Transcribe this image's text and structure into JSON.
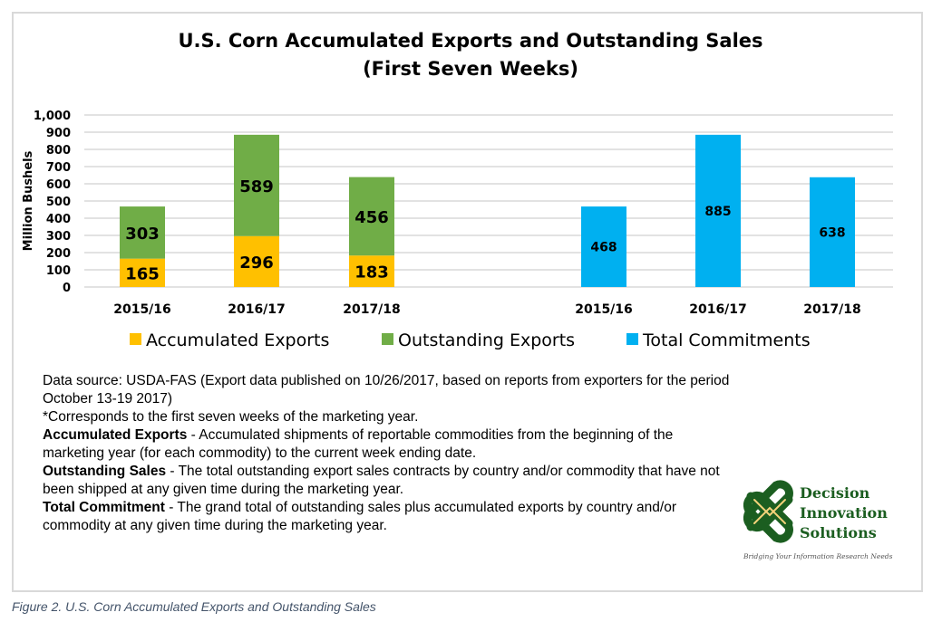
{
  "chart_data": {
    "type": "bar",
    "title": "U.S. Corn Accumulated Exports and Outstanding Sales",
    "subtitle": "(First Seven Weeks)",
    "ylabel": "Million Bushels",
    "ylim": [
      0,
      1000
    ],
    "yticks": [
      "0",
      "100",
      "200",
      "300",
      "400",
      "500",
      "600",
      "700",
      "800",
      "900",
      "1,000"
    ],
    "grid": true,
    "legend_placement": "bottom",
    "groups": [
      {
        "stacked": true,
        "categories": [
          "2015/16",
          "2016/17",
          "2017/18"
        ],
        "series": [
          {
            "name": "Accumulated Exports",
            "color": "#ffc000",
            "values": [
              165,
              296,
              183
            ]
          },
          {
            "name": "Outstanding Exports",
            "color": "#70ad47",
            "values": [
              303,
              589,
              456
            ]
          }
        ]
      },
      {
        "stacked": false,
        "categories": [
          "2015/16",
          "2016/17",
          "2017/18"
        ],
        "series": [
          {
            "name": "Total Commitments",
            "color": "#00b0f0",
            "values": [
              468,
              885,
              638
            ]
          }
        ]
      }
    ]
  },
  "notes": {
    "source": "Data source: USDA-FAS (Export data published  on 10/26/2017, based on reports from exporters for the period October 13-19 2017)",
    "footnote": "*Corresponds to the first seven weeks of the marketing year.",
    "defs": [
      {
        "term": "Accumulated Exports",
        "text": " - Accumulated shipments of reportable commodities from the beginning of the marketing year (for each commodity) to the current week ending date."
      },
      {
        "term": "Outstanding Sales",
        "text": " - The total outstanding export sales contracts by country and/or commodity that have not been shipped at any given time during the marketing year."
      },
      {
        "term": "Total Commitment",
        "text": " - The grand total of outstanding sales plus accumulated exports by country and/or commodity at any given time during the marketing year."
      }
    ]
  },
  "logo": {
    "name_lines": [
      "Decision",
      "Innovation",
      "Solutions"
    ],
    "tagline": "Bridging Your Information Research Needs"
  },
  "caption": "Figure 2. U.S. Corn Accumulated Exports and Outstanding Sales"
}
